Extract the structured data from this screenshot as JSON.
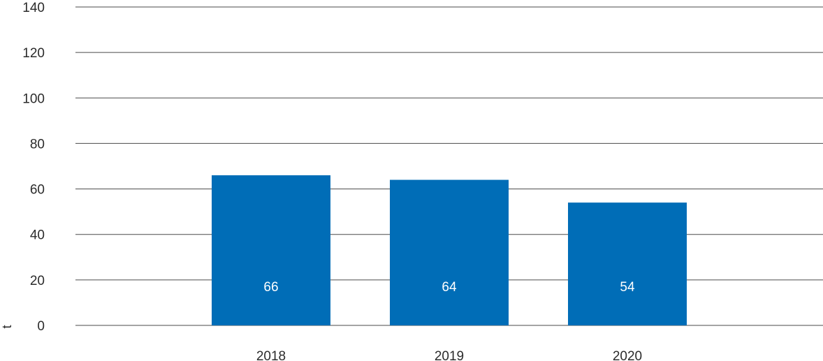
{
  "chart_data": {
    "type": "bar",
    "categories": [
      "2018",
      "2019",
      "2020"
    ],
    "values": [
      66,
      64,
      54
    ],
    "data_labels": [
      "66",
      "64",
      "54"
    ],
    "ylabel": "t",
    "ylim": [
      0,
      140
    ],
    "yticks": [
      0,
      20,
      40,
      60,
      80,
      100,
      120,
      140
    ],
    "grid": true,
    "legend": "none",
    "colors": {
      "bar": "#006db7",
      "grid": "#4a4a4a",
      "text": "#2b2b2b",
      "data_label": "#ffffff"
    }
  }
}
